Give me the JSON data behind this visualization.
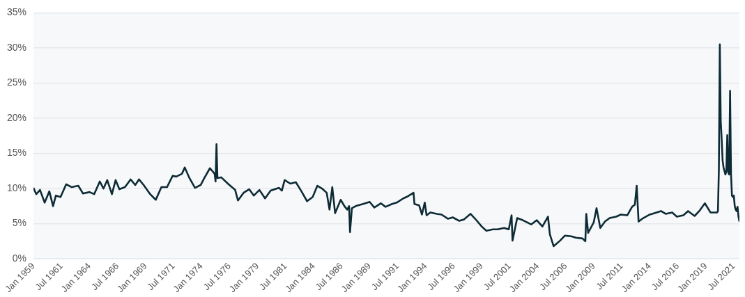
{
  "chart_data": {
    "type": "line",
    "x": [
      "1959-01",
      "1959-04",
      "1959-08",
      "1960-01",
      "1960-06",
      "1960-10",
      "1961-01",
      "1961-06",
      "1961-12",
      "1962-06",
      "1963-01",
      "1963-06",
      "1964-01",
      "1964-06",
      "1964-12",
      "1965-04",
      "1965-08",
      "1966-01",
      "1966-05",
      "1966-09",
      "1967-03",
      "1967-09",
      "1968-02",
      "1968-06",
      "1968-11",
      "1969-06",
      "1969-12",
      "1970-06",
      "1970-12",
      "1971-06",
      "1971-10",
      "1972-04",
      "1972-07",
      "1972-12",
      "1973-06",
      "1973-12",
      "1974-04",
      "1974-10",
      "1975-03",
      "1975-04",
      "1975-05",
      "1975-06",
      "1975-10",
      "1976-06",
      "1977-01",
      "1977-04",
      "1977-10",
      "1978-04",
      "1978-09",
      "1979-03",
      "1979-09",
      "1980-03",
      "1980-12",
      "1981-03",
      "1981-06",
      "1981-12",
      "1982-06",
      "1982-12",
      "1983-06",
      "1983-12",
      "1984-05",
      "1984-10",
      "1985-03",
      "1985-06",
      "1985-09",
      "1985-12",
      "1986-06",
      "1986-10",
      "1987-01",
      "1987-03",
      "1987-04",
      "1987-06",
      "1987-10",
      "1988-06",
      "1989-01",
      "1989-06",
      "1990-01",
      "1990-06",
      "1991-01",
      "1991-06",
      "1992-01",
      "1992-06",
      "1992-12",
      "1993-01",
      "1993-06",
      "1993-09",
      "1993-12",
      "1994-02",
      "1994-06",
      "1995-01",
      "1995-06",
      "1996-01",
      "1996-06",
      "1997-01",
      "1997-06",
      "1998-01",
      "1998-06",
      "1999-01",
      "1999-06",
      "2000-01",
      "2000-06",
      "2001-01",
      "2001-06",
      "2001-09",
      "2001-10",
      "2002-03",
      "2002-09",
      "2003-06",
      "2003-12",
      "2004-06",
      "2004-12",
      "2005-02",
      "2005-06",
      "2006-01",
      "2006-06",
      "2007-01",
      "2007-06",
      "2008-01",
      "2008-04",
      "2008-05",
      "2008-07",
      "2009-01",
      "2009-04",
      "2009-08",
      "2010-01",
      "2010-06",
      "2011-01",
      "2011-06",
      "2012-01",
      "2012-06",
      "2012-09",
      "2012-11",
      "2013-01",
      "2013-06",
      "2014-01",
      "2014-06",
      "2015-01",
      "2015-06",
      "2016-01",
      "2016-06",
      "2017-01",
      "2017-06",
      "2018-01",
      "2018-06",
      "2018-12",
      "2019-06",
      "2020-01",
      "2020-02",
      "2020-03",
      "2020-04",
      "2020-05",
      "2020-06",
      "2020-07",
      "2020-08",
      "2020-09",
      "2020-10",
      "2020-11",
      "2020-12",
      "2021-01",
      "2021-02",
      "2021-03",
      "2021-04",
      "2021-05",
      "2021-06",
      "2021-07",
      "2021-08",
      "2021-09",
      "2021-10",
      "2021-11",
      "2021-12",
      "2022-01"
    ],
    "series": [
      {
        "color": "#0d2b35",
        "values": [
          10.1,
          9.2,
          9.8,
          8.0,
          9.6,
          7.5,
          9.0,
          8.8,
          10.6,
          10.2,
          10.4,
          9.3,
          9.5,
          9.2,
          11.0,
          10.0,
          11.2,
          9.2,
          11.2,
          9.9,
          10.2,
          11.3,
          10.5,
          11.3,
          10.5,
          9.2,
          8.4,
          10.2,
          10.2,
          11.8,
          11.7,
          12.1,
          13.0,
          11.5,
          10.1,
          10.5,
          11.5,
          12.9,
          12.1,
          11.0,
          16.3,
          11.5,
          11.6,
          10.6,
          9.8,
          8.3,
          9.4,
          9.9,
          9.0,
          9.8,
          8.6,
          9.7,
          10.1,
          9.7,
          11.2,
          10.7,
          10.9,
          9.6,
          8.2,
          8.8,
          10.4,
          10.0,
          9.4,
          7.0,
          10.2,
          6.5,
          8.4,
          7.5,
          7.0,
          7.5,
          3.8,
          7.2,
          7.5,
          7.8,
          8.1,
          7.3,
          7.9,
          7.4,
          7.8,
          8.0,
          8.6,
          8.9,
          9.4,
          7.8,
          7.6,
          6.3,
          8.0,
          6.2,
          6.6,
          6.4,
          6.3,
          5.7,
          5.9,
          5.4,
          5.6,
          6.4,
          5.7,
          4.6,
          4.0,
          4.2,
          4.2,
          4.4,
          4.2,
          6.2,
          2.6,
          5.8,
          5.5,
          4.9,
          5.5,
          4.6,
          6.0,
          3.5,
          1.8,
          2.6,
          3.3,
          3.2,
          3.0,
          2.9,
          2.5,
          6.4,
          3.7,
          5.2,
          7.2,
          4.4,
          5.3,
          5.8,
          6.0,
          6.3,
          6.2,
          7.4,
          7.7,
          10.4,
          5.3,
          5.8,
          6.3,
          6.5,
          6.8,
          6.4,
          6.6,
          6.0,
          6.2,
          6.8,
          6.1,
          6.8,
          7.9,
          6.6,
          6.6,
          6.8,
          12.8,
          30.5,
          19.5,
          17.0,
          14.0,
          13.0,
          12.5,
          12.0,
          12.5,
          17.6,
          12.3,
          12.0,
          23.9,
          12.0,
          9.0,
          8.8,
          9.0,
          7.5,
          7.0,
          6.8,
          7.4,
          6.0,
          5.3
        ]
      }
    ],
    "xlim": [
      "1959-01",
      "2022-01"
    ],
    "xticks": [
      {
        "value": "1959-01",
        "label": "Jan 1959"
      },
      {
        "value": "1961-07",
        "label": "Jul 1961"
      },
      {
        "value": "1964-01",
        "label": "Jan 1964"
      },
      {
        "value": "1966-07",
        "label": "Jul 1966"
      },
      {
        "value": "1969-01",
        "label": "Jan 1969"
      },
      {
        "value": "1971-07",
        "label": "Jul 1971"
      },
      {
        "value": "1974-01",
        "label": "Jan 1974"
      },
      {
        "value": "1976-07",
        "label": "Jul 1976"
      },
      {
        "value": "1979-01",
        "label": "Jan 1979"
      },
      {
        "value": "1981-07",
        "label": "Jul 1981"
      },
      {
        "value": "1984-01",
        "label": "Jan 1984"
      },
      {
        "value": "1986-07",
        "label": "Jul 1986"
      },
      {
        "value": "1989-01",
        "label": "Jan 1989"
      },
      {
        "value": "1991-07",
        "label": "Jul 1991"
      },
      {
        "value": "1994-01",
        "label": "Jan 1994"
      },
      {
        "value": "1996-07",
        "label": "Jul 1996"
      },
      {
        "value": "1999-01",
        "label": "Jan 1999"
      },
      {
        "value": "2001-07",
        "label": "Jul 2001"
      },
      {
        "value": "2004-01",
        "label": "Jan 2004"
      },
      {
        "value": "2006-07",
        "label": "Jul 2006"
      },
      {
        "value": "2009-01",
        "label": "Jan 2009"
      },
      {
        "value": "2011-07",
        "label": "Jul 2011"
      },
      {
        "value": "2014-01",
        "label": "Jan 2014"
      },
      {
        "value": "2016-07",
        "label": "Jul 2016"
      },
      {
        "value": "2019-01",
        "label": "Jan 2019"
      },
      {
        "value": "2021-07",
        "label": "Jul 2021"
      }
    ],
    "ylim": [
      0,
      35
    ],
    "yticks": [
      {
        "value": 0,
        "label": "0%"
      },
      {
        "value": 5,
        "label": "5%"
      },
      {
        "value": 10,
        "label": "10%"
      },
      {
        "value": 15,
        "label": "15%"
      },
      {
        "value": 20,
        "label": "20%"
      },
      {
        "value": 25,
        "label": "25%"
      },
      {
        "value": 30,
        "label": "30%"
      },
      {
        "value": 35,
        "label": "35%"
      }
    ],
    "grid": "y",
    "legend": false,
    "marker": "none",
    "line_style": "solid"
  }
}
